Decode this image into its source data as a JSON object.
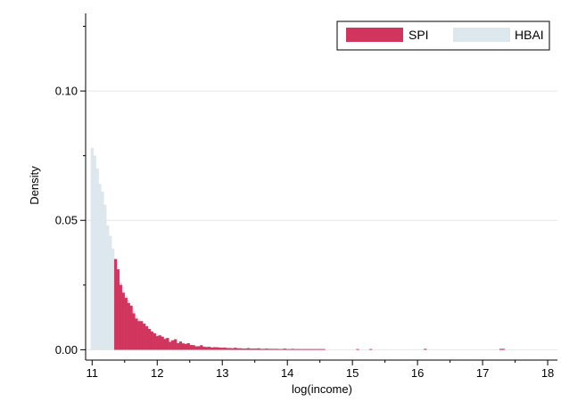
{
  "chart_data": {
    "type": "bar",
    "xlabel": "log(income)",
    "ylabel": "Density",
    "xlim": [
      10.9,
      18.15
    ],
    "ylim": [
      -0.004,
      0.13
    ],
    "x_ticks": [
      11,
      12,
      13,
      14,
      15,
      16,
      17,
      18
    ],
    "y_ticks": [
      0.0,
      0.05,
      0.1
    ],
    "y_tick_labels": [
      "0.00",
      "0.05",
      "0.10"
    ],
    "grid": true,
    "legend_position": "top-right",
    "bin_width": 0.04,
    "series": [
      {
        "name": "HBAI",
        "color": "#dde7ee",
        "x": [
          11.0,
          11.04,
          11.08,
          11.12,
          11.16,
          11.2,
          11.24,
          11.28,
          11.32,
          11.36,
          11.4,
          11.44,
          11.48,
          11.52,
          11.56,
          11.6,
          11.64,
          11.68,
          11.72,
          11.76,
          11.8,
          11.84,
          11.88,
          11.92,
          11.96,
          12.0,
          12.04,
          12.08,
          12.12,
          12.16,
          12.2,
          12.24,
          12.28,
          12.32,
          12.36,
          12.4,
          12.44,
          12.48,
          12.52,
          12.56,
          12.6,
          12.64,
          12.68,
          12.72,
          12.76,
          12.8,
          12.84,
          12.88,
          12.92,
          12.96,
          13.0,
          13.04,
          13.08,
          13.12,
          13.16,
          13.2,
          13.24,
          13.28,
          13.32,
          13.36,
          13.4,
          13.44,
          13.48,
          13.52,
          13.56,
          13.6,
          13.64,
          13.68,
          13.72,
          13.76,
          13.8,
          13.84,
          13.88,
          13.92,
          13.96,
          14.0,
          14.04,
          14.08,
          14.12,
          14.16,
          14.2,
          14.24,
          14.28,
          14.32,
          14.36,
          14.4
        ],
        "values": [
          0.078,
          0.075,
          0.07,
          0.064,
          0.061,
          0.056,
          0.048,
          0.044,
          0.039,
          0.035,
          0.031,
          0.026,
          0.023,
          0.021,
          0.019,
          0.017,
          0.015,
          0.013,
          0.012,
          0.011,
          0.01,
          0.009,
          0.008,
          0.007,
          0.0065,
          0.006,
          0.0055,
          0.005,
          0.0045,
          0.004,
          0.0037,
          0.0034,
          0.0031,
          0.0028,
          0.0026,
          0.0024,
          0.0022,
          0.002,
          0.0018,
          0.0017,
          0.0016,
          0.0015,
          0.0014,
          0.0013,
          0.0012,
          0.0011,
          0.001,
          0.001,
          0.0009,
          0.0009,
          0.0008,
          0.0008,
          0.0007,
          0.0007,
          0.0006,
          0.0006,
          0.0006,
          0.0005,
          0.0005,
          0.0005,
          0.0004,
          0.0004,
          0.0004,
          0.0004,
          0.0003,
          0.0003,
          0.0003,
          0.0003,
          0.0003,
          0.0002,
          0.0002,
          0.0002,
          0.0002,
          0.0002,
          0.0002,
          0.0002,
          0.0001,
          0.0001,
          0.0001,
          0.0001,
          0.0001,
          0.0001,
          0.0001,
          0.0001,
          0.0001,
          0.0001
        ]
      },
      {
        "name": "SPI",
        "color": "#d1355d",
        "x": [
          11.36,
          11.4,
          11.44,
          11.48,
          11.52,
          11.56,
          11.6,
          11.64,
          11.68,
          11.72,
          11.76,
          11.8,
          11.84,
          11.88,
          11.92,
          11.96,
          12.0,
          12.04,
          12.08,
          12.12,
          12.16,
          12.2,
          12.24,
          12.28,
          12.32,
          12.36,
          12.4,
          12.44,
          12.48,
          12.52,
          12.56,
          12.6,
          12.64,
          12.68,
          12.72,
          12.76,
          12.8,
          12.84,
          12.88,
          12.92,
          12.96,
          13.0,
          13.04,
          13.08,
          13.12,
          13.16,
          13.2,
          13.24,
          13.28,
          13.32,
          13.36,
          13.4,
          13.44,
          13.48,
          13.52,
          13.56,
          13.6,
          13.64,
          13.68,
          13.72,
          13.76,
          13.8,
          13.84,
          13.88,
          13.92,
          13.96,
          14.0,
          14.04,
          14.08,
          14.12,
          14.16,
          14.2,
          14.24,
          14.28,
          14.32,
          14.36,
          14.4,
          14.44,
          14.48,
          14.52,
          14.56,
          15.08,
          15.28,
          16.12,
          17.28,
          17.32
        ],
        "values": [
          0.035,
          0.031,
          0.025,
          0.022,
          0.02,
          0.018,
          0.017,
          0.014,
          0.012,
          0.011,
          0.011,
          0.01,
          0.009,
          0.008,
          0.007,
          0.0063,
          0.0052,
          0.0055,
          0.005,
          0.0041,
          0.0045,
          0.003,
          0.0036,
          0.004,
          0.0025,
          0.0031,
          0.0024,
          0.0022,
          0.0025,
          0.0018,
          0.0017,
          0.0012,
          0.0013,
          0.0017,
          0.0011,
          0.001,
          0.0011,
          0.0008,
          0.0009,
          0.0009,
          0.0008,
          0.0007,
          0.0008,
          0.0006,
          0.0006,
          0.0005,
          0.0007,
          0.0005,
          0.0005,
          0.0004,
          0.0004,
          0.0006,
          0.0004,
          0.0004,
          0.0004,
          0.0005,
          0.0003,
          0.0003,
          0.0004,
          0.0003,
          0.0003,
          0.0003,
          0.0003,
          0.0002,
          0.0002,
          0.0004,
          0.0002,
          0.0002,
          0.0003,
          0.0002,
          0.0002,
          0.0002,
          0.0002,
          0.0002,
          0.0002,
          0.0002,
          0.0002,
          0.0002,
          0.0002,
          0.0002,
          0.0002,
          0.0002,
          0.0002,
          0.0003,
          0.0003,
          0.0003
        ]
      }
    ]
  }
}
